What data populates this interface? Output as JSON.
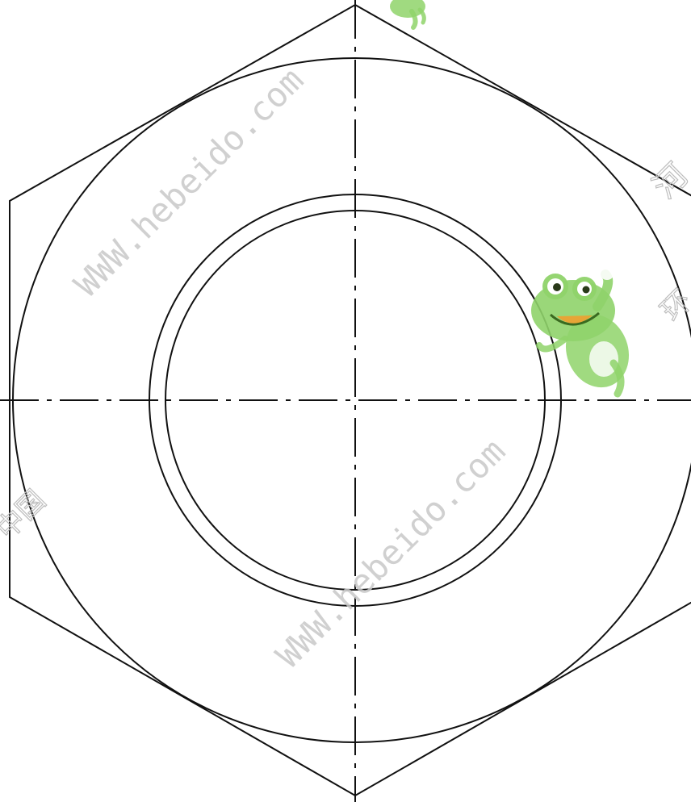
{
  "drawing": {
    "title": "",
    "line_color": "#111111",
    "centerline_style": "dash-dot"
  },
  "watermarks": {
    "url_text": "WWW.hebeido.com",
    "cn_fragment_left": "中国",
    "cn_fragment_right_top": "河",
    "cn_fragment_right_mid": "环",
    "mascot": "green-frog-mascot"
  }
}
